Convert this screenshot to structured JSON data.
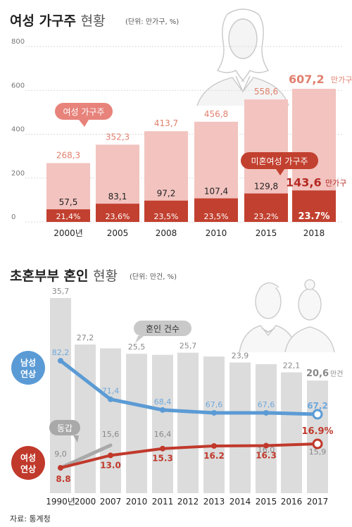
{
  "source": "자료: 통계청",
  "chart_data": [
    {
      "type": "bar",
      "title": "여성 가구주 현황",
      "unit_label": "(단위: 만가구, %)",
      "categories": [
        "2000년",
        "2005",
        "2008",
        "2010",
        "2015",
        "2018"
      ],
      "ylim": [
        0,
        800
      ],
      "yticks": [
        "0",
        "200",
        "400",
        "600",
        "800"
      ],
      "series": [
        {
          "name": "여성 가구주",
          "values": [
            268.3,
            352.3,
            413.7,
            456.8,
            558.6,
            607.2
          ],
          "labels": [
            "268,3",
            "352,3",
            "413,7",
            "456,8",
            "558,6",
            "607,2"
          ]
        },
        {
          "name": "미혼여성 가구주",
          "values": [
            57.5,
            83.1,
            97.2,
            107.4,
            129.8,
            143.6
          ],
          "labels": [
            "57,5",
            "83,1",
            "97,2",
            "107,4",
            "129,8",
            "143,6"
          ],
          "share_labels": [
            "21,4%",
            "23,6%",
            "23,5%",
            "23,5%",
            "23,2%",
            "23.7%"
          ]
        }
      ],
      "unit_suffix": "만가구",
      "colors": {
        "total": "#f2c3bf",
        "single": "#c2402f",
        "total_label": "#e0806e",
        "latest": "#b52a23",
        "callout": "#e7837b"
      }
    },
    {
      "type": "bar+line",
      "title": "초혼부부 혼인 현황",
      "unit_label": "(단위: 만건, %)",
      "categories": [
        "1990년",
        "2000",
        "2007",
        "2010",
        "2011",
        "2012",
        "2013",
        "2014",
        "2015",
        "2016",
        "2017"
      ],
      "bars": {
        "name": "혼인 건수",
        "values": [
          35.7,
          27.2,
          null,
          25.5,
          null,
          25.7,
          null,
          23.9,
          null,
          22.1,
          20.6
        ],
        "labels": [
          "35,7",
          "27,2",
          "",
          "25,5",
          "",
          "25,7",
          "",
          "23,9",
          "",
          "22,1",
          "20,6"
        ],
        "bar_values": [
          35.7,
          27.2,
          26.5,
          25.5,
          25.3,
          25.7,
          25.0,
          23.9,
          23.6,
          22.1,
          20.6
        ],
        "unit_suffix": "만건"
      },
      "series": [
        {
          "name": "남성 연상",
          "name_lines": [
            "남성",
            "연상"
          ],
          "x": [
            "1990년",
            "2007",
            "2011",
            "2013",
            "2015",
            "2017"
          ],
          "values": [
            82.2,
            71.4,
            68.4,
            67.6,
            67.6,
            67.2
          ],
          "labels": [
            "82,2",
            "71,4",
            "68,4",
            "67,6",
            "67,6",
            "67,2"
          ]
        },
        {
          "name": "동갑",
          "x": [
            "1990년",
            "2007",
            "2011",
            "2015",
            "2017"
          ],
          "values": [
            9.0,
            15.6,
            16.4,
            16.0,
            15.9
          ],
          "labels": [
            "9,0",
            "15,6",
            "16,4",
            "16,0",
            "15,9"
          ]
        },
        {
          "name": "여성 연상",
          "name_lines": [
            "여성",
            "연상"
          ],
          "x": [
            "1990년",
            "2007",
            "2011",
            "2013",
            "2015",
            "2017"
          ],
          "values": [
            8.8,
            13.0,
            15.3,
            16.2,
            16.3,
            16.9
          ],
          "labels": [
            "8.8",
            "13.0",
            "15.3",
            "16.2",
            "16.3",
            "16.9%"
          ]
        }
      ],
      "colors": {
        "bar": "#dcdcdc",
        "male": "#5b9bd5",
        "male_label": "#6fa8dc",
        "female": "#c0392b",
        "same": "#a9a9a9"
      }
    }
  ]
}
